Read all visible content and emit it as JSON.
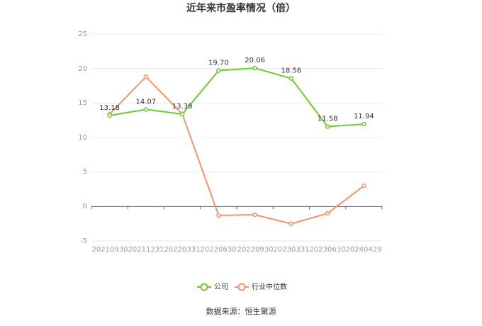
{
  "chart_data": {
    "type": "line",
    "title": "近年来市盈率情况（倍）",
    "categories": [
      "20210930",
      "20211231",
      "20220331",
      "20220630",
      "20220930",
      "20230331",
      "20230630",
      "20240429"
    ],
    "series": [
      {
        "name": "公司",
        "color": "#6acd2e",
        "values": [
          13.18,
          14.07,
          13.39,
          19.7,
          20.06,
          18.56,
          11.58,
          11.94
        ],
        "labels": [
          "13.18",
          "14.07",
          "13.39",
          "19.70",
          "20.06",
          "18.56",
          "11.58",
          "11.94"
        ]
      },
      {
        "name": "行业中位数",
        "color": "#f5946b",
        "values": [
          13.4,
          18.8,
          13.4,
          -1.3,
          -1.2,
          -2.5,
          -1.0,
          3.0
        ]
      }
    ],
    "yticks": [
      "25",
      "20",
      "15",
      "10",
      "5",
      "0",
      "-5"
    ],
    "ylim": [
      -5,
      25
    ],
    "grid": true,
    "legend_position": "bottom"
  },
  "source": "数据来源：恒生聚源"
}
